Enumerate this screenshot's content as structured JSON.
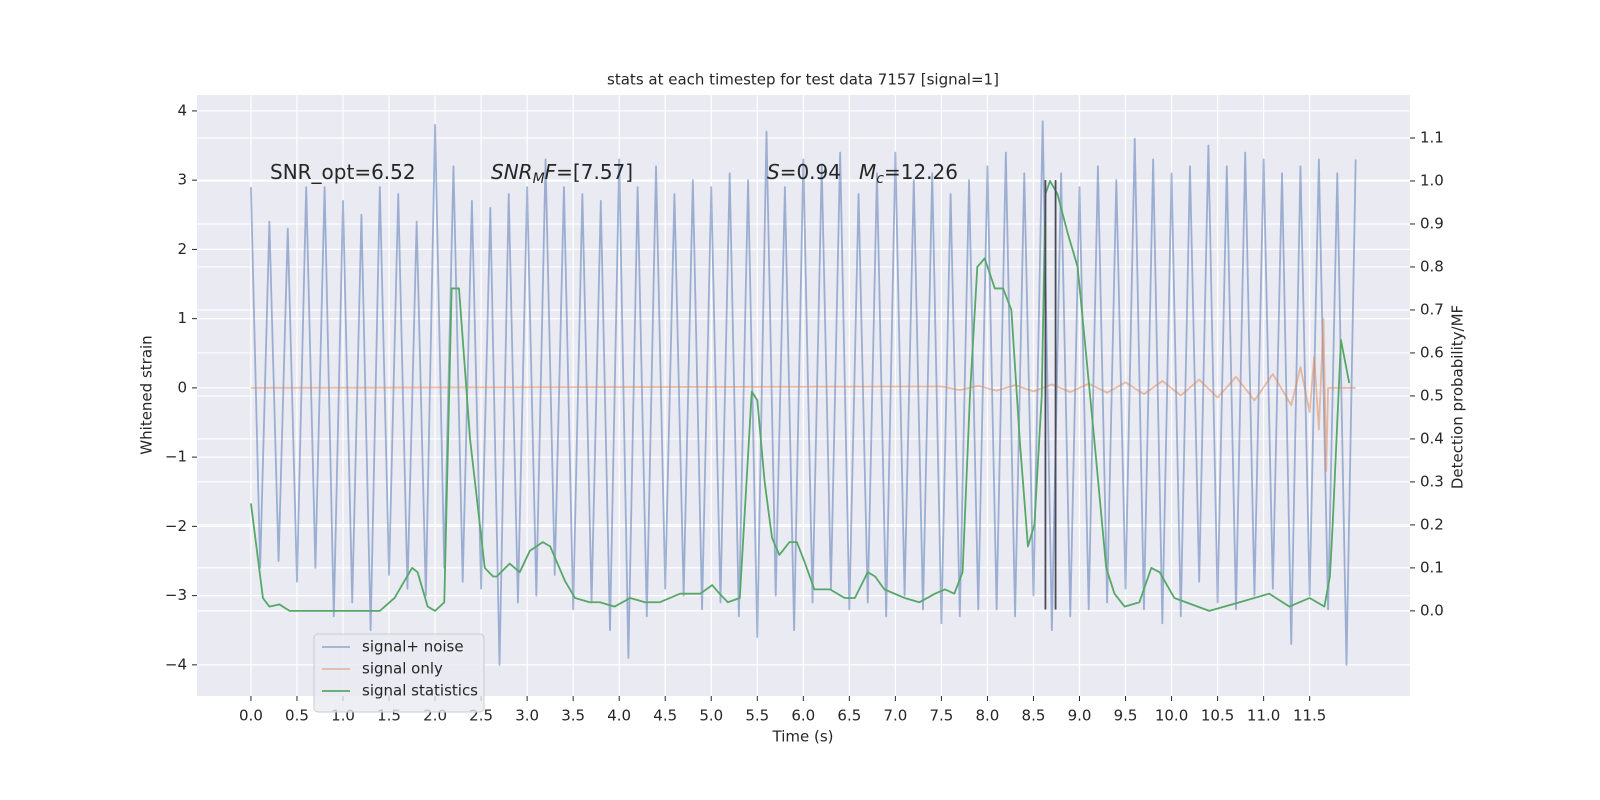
{
  "chart_data": {
    "type": "line",
    "title": "stats at each timestep for test data 7157 [signal=1]",
    "xlabel": "Time (s)",
    "ylabel": "Whitened strain",
    "y2label": "Detection probability/MF",
    "xlim": [
      -0.586,
      12.59
    ],
    "ylim": [
      -4.45,
      4.23
    ],
    "y2lim": [
      -0.198,
      1.2
    ],
    "xticks": [
      {
        "value": 0,
        "label": "0.0"
      },
      0.5,
      {
        "value": 1,
        "label": "1.0"
      },
      1.5,
      {
        "value": 2,
        "label": "2.0"
      },
      2.5,
      {
        "value": 3,
        "label": "3.0"
      },
      3.5,
      {
        "value": 4,
        "label": "4.0"
      },
      4.5,
      {
        "value": 5,
        "label": "5.0"
      },
      5.5,
      {
        "value": 6,
        "label": "6.0"
      },
      6.5,
      {
        "value": 7,
        "label": "7.0"
      },
      7.5,
      {
        "value": 8,
        "label": "8.0"
      },
      8.5,
      {
        "value": 9,
        "label": "9.0"
      },
      9.5,
      {
        "value": 10,
        "label": "10.0"
      },
      10.5,
      {
        "value": 11,
        "label": "11.0"
      },
      11.5
    ],
    "yticks": [
      {
        "value": -4,
        "label": "−4"
      },
      {
        "value": -3,
        "label": "−3"
      },
      {
        "value": -2,
        "label": "−2"
      },
      {
        "value": -1,
        "label": "−1"
      },
      0,
      1,
      2,
      3,
      4
    ],
    "y2ticks": [
      {
        "value": 0,
        "label": "0.0"
      },
      0.1,
      0.2,
      0.3,
      0.4,
      0.5,
      0.6,
      0.7,
      0.8,
      0.9,
      {
        "value": 1,
        "label": "1.0"
      },
      1.1
    ],
    "grid": true,
    "legend": "lower left",
    "annotations": [
      [
        {
          "text": "SNR_opt=6.52"
        }
      ],
      [
        {
          "text": "SNR",
          "italic": true
        },
        {
          "text": "M",
          "italic": true,
          "sub": true
        },
        {
          "text": "F",
          "italic": true
        },
        {
          "text": "=[7.57]"
        }
      ],
      [
        {
          "text": "S",
          "italic": true
        },
        {
          "text": "=0.94"
        }
      ],
      [
        {
          "text": "M",
          "italic": true
        },
        {
          "text": "c",
          "italic": true,
          "sub": true
        },
        {
          "text": "=12.26"
        }
      ]
    ],
    "vlines": {
      "x": [
        8.63,
        8.74
      ],
      "y": [
        -3.2,
        3.0
      ],
      "color": "#4a4a5a"
    },
    "series": [
      {
        "name": "signal+ noise",
        "color": "#4c72b0",
        "opacity": 0.5,
        "x": [
          0,
          0.1,
          0.2,
          0.3,
          0.4,
          0.5,
          0.6,
          0.7,
          0.8,
          0.9,
          1,
          1.1,
          1.2,
          1.3,
          1.4,
          1.5,
          1.6,
          1.7,
          1.8,
          1.9,
          2,
          2.1,
          2.2,
          2.3,
          2.4,
          2.5,
          2.6,
          2.7,
          2.8,
          2.9,
          3,
          3.1,
          3.2,
          3.3,
          3.4,
          3.5,
          3.6,
          3.7,
          3.8,
          3.9,
          4,
          4.1,
          4.2,
          4.3,
          4.4,
          4.5,
          4.6,
          4.7,
          4.8,
          4.9,
          5,
          5.1,
          5.2,
          5.3,
          5.4,
          5.5,
          5.6,
          5.7,
          5.8,
          5.9,
          6,
          6.1,
          6.2,
          6.3,
          6.4,
          6.5,
          6.6,
          6.7,
          6.8,
          6.9,
          7,
          7.1,
          7.2,
          7.3,
          7.4,
          7.5,
          7.6,
          7.7,
          7.8,
          7.9,
          8,
          8.1,
          8.2,
          8.3,
          8.4,
          8.5,
          8.6,
          8.7,
          8.8,
          8.9,
          9,
          9.1,
          9.2,
          9.3,
          9.4,
          9.5,
          9.6,
          9.7,
          9.8,
          9.9,
          10,
          10.1,
          10.2,
          10.3,
          10.4,
          10.5,
          10.6,
          10.7,
          10.8,
          10.9,
          11,
          11.1,
          11.2,
          11.3,
          11.4,
          11.5,
          11.6,
          11.7,
          11.8,
          11.9,
          12
        ],
        "values": [
          2.9,
          -2.6,
          2.4,
          -2.5,
          2.3,
          -2.8,
          2.9,
          -2.6,
          2.9,
          -3.3,
          2.7,
          -3.1,
          2.5,
          -3.5,
          2.9,
          -2.7,
          2.8,
          -2.9,
          2.4,
          -3.0,
          3.8,
          -2.6,
          3.2,
          -2.8,
          2.7,
          -2.9,
          2.6,
          -4.0,
          2.8,
          -3.1,
          2.9,
          -3.0,
          3.3,
          -2.7,
          2.9,
          -3.2,
          2.8,
          -3.1,
          2.7,
          -3.5,
          3.3,
          -3.9,
          2.9,
          -3.3,
          3.2,
          -2.9,
          2.8,
          -3.0,
          3.0,
          -3.2,
          2.9,
          -3.1,
          3.1,
          -3.3,
          3.0,
          -3.6,
          3.7,
          -3.0,
          2.9,
          -3.5,
          3.3,
          -3.1,
          3.2,
          -2.9,
          3.4,
          -3.2,
          2.8,
          -3.1,
          3.1,
          -3.3,
          3.4,
          -3.0,
          3.0,
          -3.2,
          3.1,
          -3.4,
          2.8,
          -3.3,
          3.0,
          -3.2,
          3.2,
          -3.2,
          3.4,
          -3.3,
          3.1,
          -3.0,
          3.85,
          -3.5,
          3.1,
          -3.3,
          2.9,
          -3.2,
          3.2,
          -3.1,
          3.0,
          -2.9,
          3.6,
          -3.2,
          3.3,
          -3.4,
          3.1,
          -3.3,
          3.2,
          -2.8,
          3.5,
          -3.1,
          3.2,
          -3.2,
          3.4,
          -3.0,
          3.3,
          -2.9,
          3.1,
          -3.7,
          3.2,
          -3.0,
          3.3,
          -3.2,
          3.1,
          -4.0,
          3.3
        ]
      },
      {
        "name": "signal only",
        "color": "#dd8452",
        "opacity": 0.5,
        "x": [
          0,
          7.5,
          7.7,
          7.9,
          8.1,
          8.3,
          8.5,
          8.7,
          8.9,
          9.1,
          9.3,
          9.5,
          9.7,
          9.9,
          10.1,
          10.3,
          10.5,
          10.7,
          10.9,
          11.1,
          11.3,
          11.4,
          11.5,
          11.55,
          11.6,
          11.65,
          11.68,
          11.7,
          12
        ],
        "values": [
          0,
          0.02,
          -0.03,
          0.03,
          -0.04,
          0.04,
          -0.05,
          0.05,
          -0.06,
          0.06,
          -0.07,
          0.08,
          -0.09,
          0.1,
          -0.11,
          0.12,
          -0.14,
          0.16,
          -0.18,
          0.2,
          -0.25,
          0.3,
          -0.35,
          0.45,
          -0.6,
          1.0,
          -1.2,
          0,
          0
        ]
      },
      {
        "name": "signal statistics",
        "color": "#55a868",
        "opacity": 1,
        "axis": "y2",
        "x": [
          0,
          0.13,
          0.2,
          0.31,
          0.42,
          0.86,
          1.4,
          1.56,
          1.75,
          1.81,
          1.92,
          2.0,
          2.1,
          2.18,
          2.26,
          2.38,
          2.54,
          2.63,
          2.67,
          2.81,
          2.92,
          3.03,
          3.17,
          3.25,
          3.41,
          3.52,
          3.68,
          3.79,
          3.95,
          4.12,
          4.28,
          4.44,
          4.66,
          4.88,
          5.01,
          5.09,
          5.18,
          5.31,
          5.44,
          5.5,
          5.58,
          5.66,
          5.74,
          5.85,
          5.93,
          6.02,
          6.12,
          6.29,
          6.45,
          6.56,
          6.7,
          6.78,
          6.88,
          7.1,
          7.26,
          7.43,
          7.54,
          7.64,
          7.73,
          7.81,
          7.89,
          7.97,
          8.08,
          8.17,
          8.26,
          8.35,
          8.44,
          8.51,
          8.59,
          8.63,
          8.68,
          8.76,
          8.87,
          8.98,
          9.16,
          9.29,
          9.38,
          9.49,
          9.65,
          9.78,
          9.87,
          10.03,
          10.41,
          10.74,
          11.06,
          11.28,
          11.5,
          11.66,
          11.72,
          11.75,
          11.84,
          11.93
        ],
        "values": [
          0.25,
          0.03,
          0.01,
          0.015,
          0.0,
          0.0,
          0.0,
          0.03,
          0.1,
          0.09,
          0.01,
          0.0,
          0.02,
          0.75,
          0.75,
          0.4,
          0.1,
          0.08,
          0.08,
          0.11,
          0.09,
          0.14,
          0.16,
          0.15,
          0.07,
          0.03,
          0.02,
          0.02,
          0.01,
          0.03,
          0.02,
          0.02,
          0.04,
          0.04,
          0.06,
          0.04,
          0.02,
          0.03,
          0.51,
          0.49,
          0.3,
          0.17,
          0.13,
          0.16,
          0.16,
          0.11,
          0.05,
          0.05,
          0.03,
          0.03,
          0.09,
          0.08,
          0.05,
          0.03,
          0.02,
          0.04,
          0.05,
          0.04,
          0.09,
          0.5,
          0.8,
          0.82,
          0.75,
          0.75,
          0.7,
          0.4,
          0.15,
          0.2,
          0.5,
          0.97,
          1.0,
          0.97,
          0.88,
          0.8,
          0.4,
          0.1,
          0.04,
          0.01,
          0.02,
          0.1,
          0.09,
          0.03,
          0.0,
          0.02,
          0.04,
          0.01,
          0.03,
          0.01,
          0.08,
          0.2,
          0.63,
          0.53
        ]
      }
    ]
  }
}
